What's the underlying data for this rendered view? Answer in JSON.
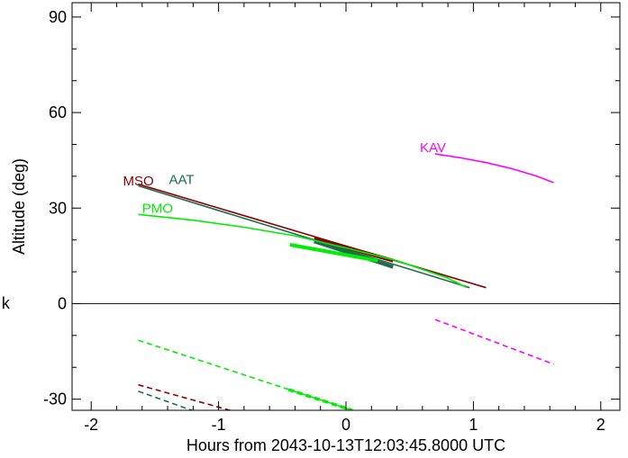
{
  "chart_data": {
    "type": "line",
    "title": "",
    "xlabel": "Hours from 2043-10-13T12:03:45.8000 UTC",
    "ylabel": "Altitude (deg)",
    "xlim": [
      -2.15,
      2.15
    ],
    "ylim": [
      -33.5,
      94.5
    ],
    "xticks": [
      -2,
      -1,
      0,
      1,
      2
    ],
    "xtick_labels": [
      "-2",
      "-1",
      "0",
      "1",
      "2"
    ],
    "yticks": [
      -30,
      0,
      30,
      60,
      90
    ],
    "ytick_labels": [
      "-30",
      "0",
      "30",
      "60",
      "90"
    ],
    "zero_line": true,
    "grid": false,
    "stray_label": "k",
    "series": [
      {
        "name": "MSO",
        "color": "#8b0000",
        "label": {
          "x": -1.75,
          "y": 38.5
        },
        "solid": {
          "x": [
            -1.63,
            1.1
          ],
          "y": [
            37.5,
            5.0
          ]
        },
        "thick": {
          "x": [
            -0.25,
            0.37
          ],
          "y": [
            20.5,
            13.5
          ]
        },
        "dashed": {
          "x": [
            -1.63,
            -0.91
          ],
          "y": [
            -25.5,
            -33.5
          ]
        }
      },
      {
        "name": "AAT",
        "color": "#1e6b4e",
        "label": {
          "x": -1.39,
          "y": 39.0
        },
        "solid": {
          "x": [
            -1.63,
            0.97
          ],
          "y": [
            37.0,
            5.0
          ]
        },
        "thick": {
          "x": [
            -0.25,
            0.37
          ],
          "y": [
            19.5,
            11.5
          ]
        },
        "dashed": {
          "x": [
            -1.63,
            -1.21
          ],
          "y": [
            -27.5,
            -33.5
          ]
        }
      },
      {
        "name": "PMO",
        "color": "#00ee00",
        "label": {
          "x": -1.6,
          "y": 30.0
        },
        "curve": {
          "x": [
            -1.63,
            -1.2,
            -0.8,
            -0.4,
            0.0,
            0.4,
            0.8,
            0.95
          ],
          "y": [
            28.0,
            26.2,
            24.0,
            21.3,
            17.5,
            13.5,
            8.0,
            5.0
          ]
        },
        "thick": {
          "x": [
            -0.44,
            0.25
          ],
          "y": [
            18.5,
            13.5
          ]
        },
        "dashed": {
          "x": [
            -1.63,
            0.05
          ],
          "y": [
            -11.5,
            -33.5
          ]
        },
        "dashed_thick": {
          "x": [
            -0.45,
            0.05
          ],
          "y": [
            -27.0,
            -33.5
          ]
        }
      },
      {
        "name": "KAV",
        "color": "#ff00ff",
        "label": {
          "x": 0.58,
          "y": 49.0
        },
        "curve": {
          "x": [
            0.7,
            0.9,
            1.1,
            1.3,
            1.5,
            1.63
          ],
          "y": [
            47.0,
            45.8,
            44.3,
            42.4,
            40.0,
            38.0
          ]
        },
        "dashed": {
          "x": [
            0.7,
            1.63
          ],
          "y": [
            -5.0,
            -19.0
          ]
        }
      }
    ]
  }
}
